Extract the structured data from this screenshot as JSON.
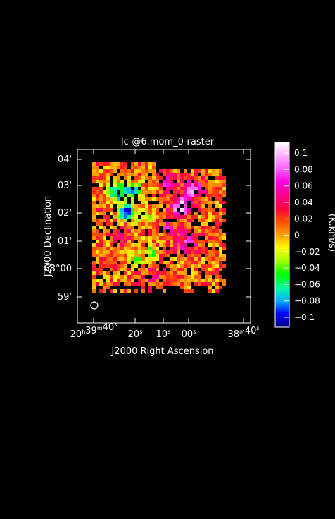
{
  "chart_data": {
    "type": "heatmap",
    "title": "lc-@6.mom_0-raster",
    "xlabel": "J2000 Right Ascension",
    "ylabel": "J2000 Declination",
    "x_ticks": [
      {
        "h": "20",
        "m": "39",
        "s": "40"
      },
      {
        "h": "",
        "m": "",
        "s": "20"
      },
      {
        "h": "",
        "m": "",
        "s": "10"
      },
      {
        "h": "",
        "m": "",
        "s": "00"
      },
      {
        "h": "",
        "m": "38",
        "s": "40"
      }
    ],
    "y_ticks": [
      {
        "deg": "",
        "min": "04'"
      },
      {
        "deg": "",
        "min": "03'"
      },
      {
        "deg": "",
        "min": "02'"
      },
      {
        "deg": "",
        "min": "01'"
      },
      {
        "deg": "68°",
        "min": "00'"
      },
      {
        "deg": "",
        "min": "59'"
      }
    ],
    "colorbar": {
      "label": "(K.km/s)",
      "ticks": [
        "0.1",
        "0.08",
        "0.06",
        "0.04",
        "0.02",
        "0",
        "−0.02",
        "−0.04",
        "−0.06",
        "−0.08",
        "−0.1"
      ],
      "min": -0.112,
      "max": 0.113,
      "colormap": [
        "#000080",
        "#0000ff",
        "#00b0ff",
        "#00ffa0",
        "#00ff00",
        "#a0ff00",
        "#ffff00",
        "#ffa000",
        "#ff5000",
        "#ff0040",
        "#ff0090",
        "#ff00e0",
        "#ff60ff",
        "#ffb0ff",
        "#ffffff"
      ]
    },
    "grid": false,
    "beam_marker": "circle, bottom-left",
    "data_description": "Noisy moment-0 raster map of integrated intensity (K km/s); values mostly between −0.1 and 0.1 with blanked (black) pixels; negative troughs at left (around 02'–03' Dec), positive peak near 00s RA, 02' Dec."
  }
}
